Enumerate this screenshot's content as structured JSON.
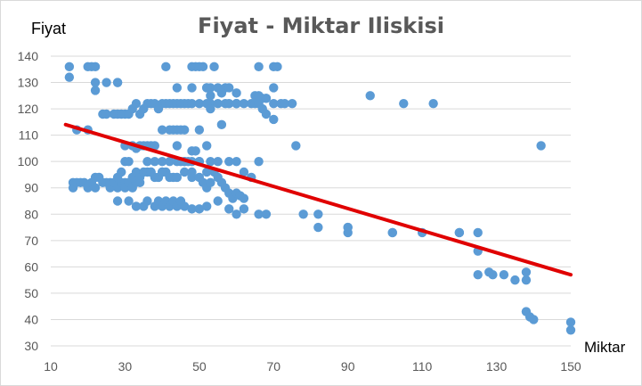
{
  "chart_data": {
    "type": "scatter",
    "title": "Fiyat - Miktar Iliskisi",
    "xlabel": "Miktar",
    "ylabel": "Fiyat",
    "xlim": [
      10,
      150
    ],
    "ylim": [
      30,
      140
    ],
    "x_ticks": [
      10,
      30,
      50,
      70,
      90,
      110,
      130,
      150
    ],
    "y_ticks": [
      30,
      40,
      50,
      60,
      70,
      80,
      90,
      100,
      110,
      120,
      130,
      140
    ],
    "grid": "horizontal",
    "legend": "none",
    "colors": {
      "points": "#5b9bd5",
      "trendline": "#e00000"
    },
    "trendline": {
      "type": "linear",
      "x": [
        14,
        150
      ],
      "y": [
        114,
        57
      ]
    },
    "series": [
      {
        "x": [
          15,
          15,
          20,
          21,
          22,
          22,
          22,
          25,
          28,
          28,
          41,
          48,
          49,
          50,
          51,
          54,
          66,
          70,
          71,
          16,
          16,
          17,
          18,
          19,
          20,
          21,
          22,
          22,
          23,
          24,
          25,
          26,
          26,
          27,
          28,
          28,
          29,
          30,
          30,
          31,
          32,
          33,
          34,
          17,
          20,
          24,
          25,
          27,
          28,
          29,
          30,
          31,
          32,
          33,
          34,
          35,
          36,
          37,
          38,
          39,
          40,
          41,
          42,
          43,
          44,
          45,
          46,
          47,
          48,
          50,
          52,
          53,
          55,
          57,
          60,
          64,
          67,
          70,
          75,
          28,
          31,
          33,
          35,
          36,
          38,
          39,
          40,
          41,
          42,
          43,
          44,
          45,
          46,
          48,
          50,
          52,
          55,
          58,
          60,
          62,
          66,
          68,
          29,
          30,
          31,
          32,
          33,
          34,
          35,
          36,
          37,
          38,
          39,
          40,
          41,
          42,
          43,
          44,
          46,
          48,
          50,
          51,
          52,
          53,
          54,
          55,
          56,
          57,
          58,
          59,
          60,
          61,
          62,
          33,
          35,
          37,
          40,
          44,
          45,
          46,
          48,
          49,
          50,
          52,
          53,
          55,
          57,
          58,
          60,
          62,
          66,
          67,
          68,
          72,
          76,
          36,
          38,
          40,
          42,
          43,
          44,
          45,
          46,
          47,
          48,
          50,
          52,
          53,
          56,
          58,
          60,
          65,
          66,
          68,
          70,
          44,
          48,
          52,
          53,
          56,
          60,
          65,
          66,
          68,
          70,
          73,
          30,
          32,
          34,
          36,
          37,
          38,
          40,
          42,
          44,
          46,
          48,
          50,
          52,
          53,
          55,
          58,
          60,
          62,
          64,
          66,
          78,
          82,
          82,
          90,
          90,
          90,
          102,
          102,
          110,
          120,
          120,
          125,
          125,
          125,
          128,
          129,
          132,
          135,
          138,
          138,
          138,
          139,
          140,
          150,
          150,
          96,
          105,
          113,
          142
        ],
        "y": [
          136,
          132,
          136,
          136,
          136,
          130,
          127,
          130,
          130,
          130,
          136,
          136,
          136,
          136,
          136,
          136,
          136,
          136,
          136,
          92,
          90,
          92,
          92,
          92,
          90,
          92,
          90,
          94,
          94,
          92,
          92,
          92,
          90,
          92,
          94,
          90,
          92,
          92,
          90,
          92,
          90,
          92,
          92,
          112,
          112,
          118,
          118,
          118,
          118,
          118,
          118,
          118,
          120,
          122,
          118,
          120,
          122,
          122,
          122,
          120,
          122,
          122,
          122,
          122,
          122,
          122,
          122,
          122,
          122,
          122,
          122,
          122,
          122,
          122,
          122,
          122,
          120,
          122,
          122,
          85,
          85,
          83,
          83,
          85,
          83,
          85,
          83,
          85,
          83,
          85,
          83,
          85,
          83,
          82,
          82,
          83,
          85,
          82,
          80,
          82,
          80,
          80,
          96,
          100,
          100,
          94,
          96,
          94,
          96,
          96,
          96,
          94,
          94,
          96,
          96,
          94,
          94,
          94,
          96,
          94,
          94,
          92,
          90,
          92,
          96,
          94,
          92,
          90,
          88,
          86,
          88,
          87,
          86,
          105,
          106,
          106,
          96,
          112,
          112,
          112,
          104,
          104,
          112,
          128,
          128,
          128,
          128,
          128,
          122,
          122,
          124,
          124,
          124,
          122,
          106,
          106,
          106,
          112,
          112,
          112,
          106,
          100,
          100,
          100,
          96,
          100,
          106,
          120,
          114,
          122,
          122,
          122,
          122,
          118,
          116,
          128,
          128,
          128,
          125,
          126,
          126,
          125,
          125,
          124,
          128,
          122,
          106,
          106,
          106,
          100,
          96,
          100,
          100,
          100,
          100,
          100,
          100,
          100,
          96,
          100,
          100,
          100,
          100,
          96,
          94,
          100,
          80,
          80,
          75,
          75,
          73,
          75,
          73,
          73,
          73,
          73,
          73,
          73,
          66,
          57,
          58,
          57,
          57,
          55,
          55,
          58,
          43,
          41,
          40,
          39,
          36,
          125,
          122,
          122,
          106
        ]
      }
    ]
  }
}
